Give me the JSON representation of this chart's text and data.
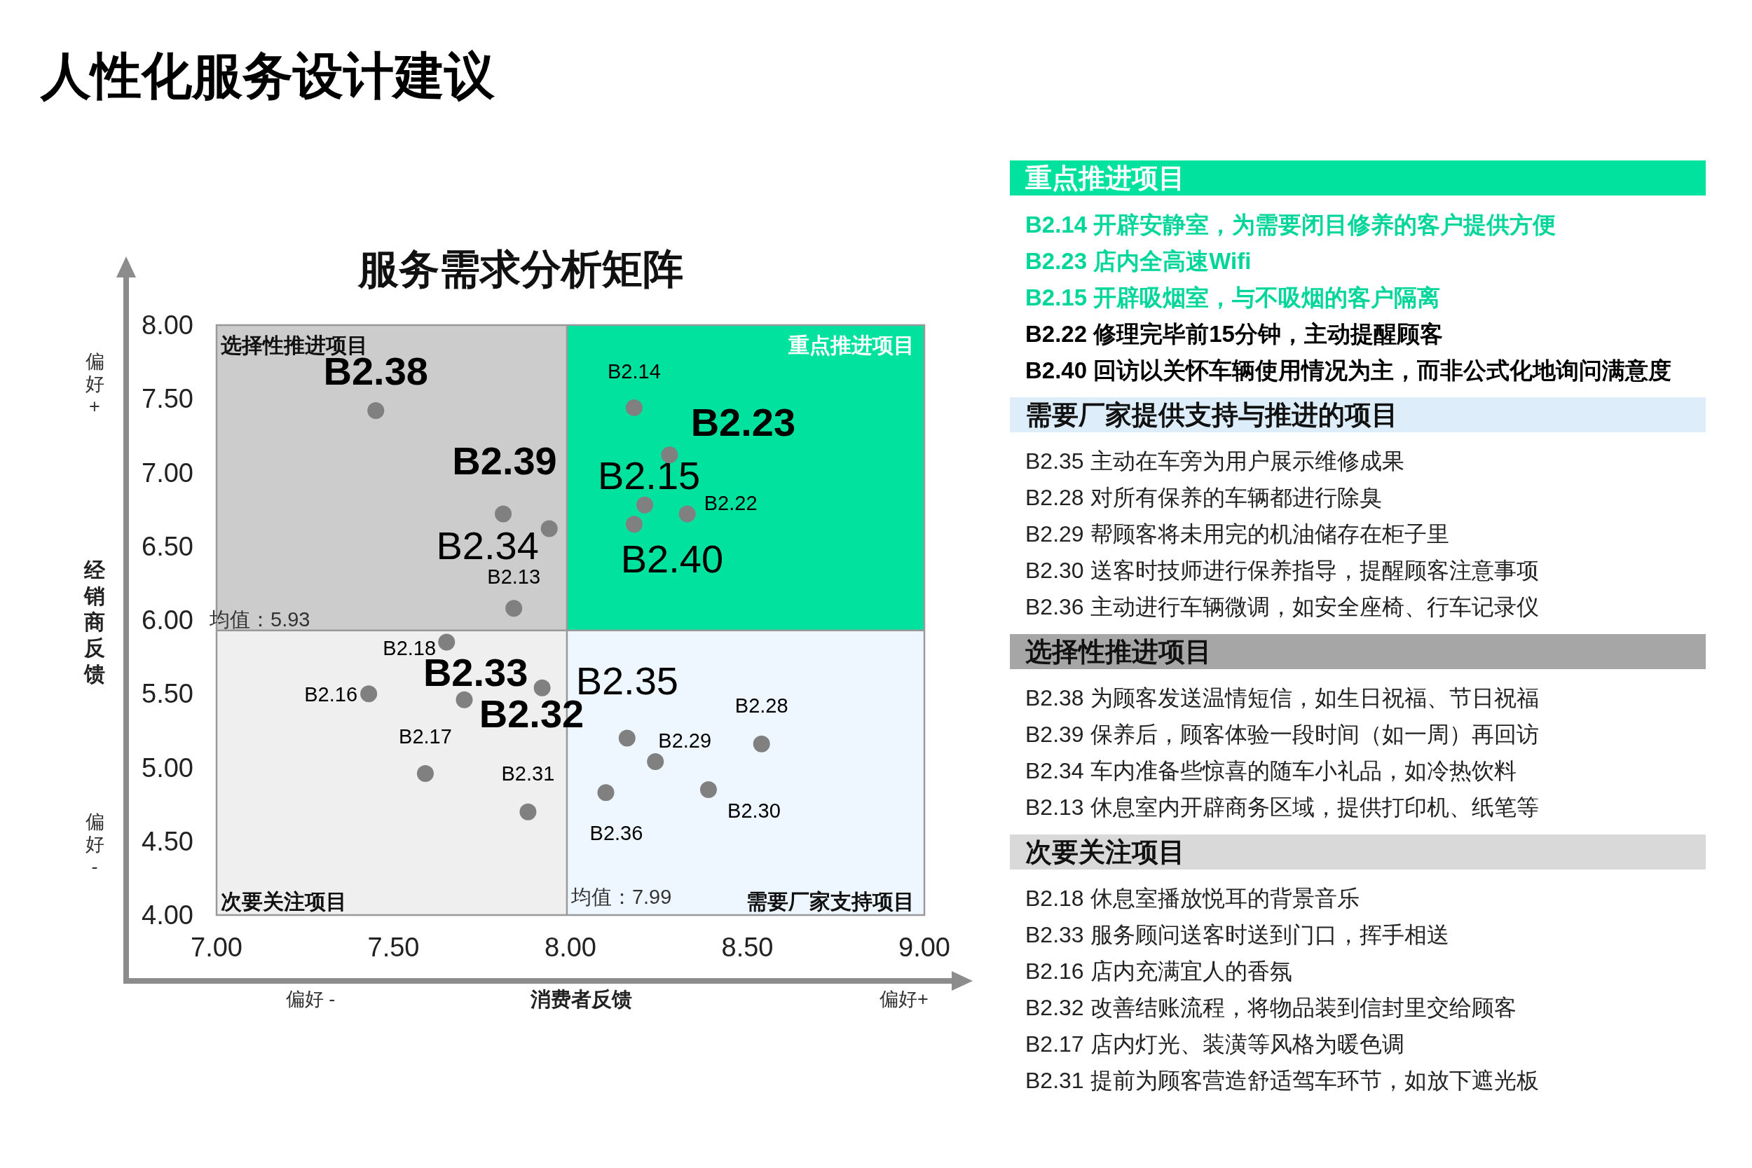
{
  "chart_data": [
    {
      "type": "scatter",
      "title": "人性化服务设计建议",
      "subtitle": "服务需求分析矩阵",
      "xlabel": "消费者反馈",
      "ylabel": "经销商反馈",
      "color": "#808080",
      "marker": "circle",
      "x": [
        8.18,
        8.28,
        8.21,
        8.33,
        8.18,
        8.16,
        8.54,
        8.24,
        8.39,
        8.1,
        7.45,
        7.81,
        7.94,
        7.84,
        7.65,
        7.92,
        7.43,
        7.7,
        7.59,
        7.88
      ],
      "values": [
        7.44,
        7.12,
        6.78,
        6.72,
        6.65,
        5.2,
        5.16,
        5.04,
        4.85,
        4.83,
        7.42,
        6.72,
        6.62,
        6.08,
        5.85,
        5.54,
        5.5,
        5.46,
        4.96,
        4.7
      ],
      "xlim": [
        7,
        9
      ],
      "ylim": [
        4,
        8
      ],
      "xticks": [
        {
          "value": 7,
          "label": "7.00"
        },
        {
          "value": 7.5,
          "label": "7.50"
        },
        {
          "value": 8,
          "label": "8.00"
        },
        {
          "value": 8.5,
          "label": "8.50"
        },
        {
          "value": 9,
          "label": "9.00"
        }
      ],
      "yticks": [
        {
          "value": 4,
          "label": "4.00"
        },
        {
          "value": 4.5,
          "label": "4.50"
        },
        {
          "value": 5,
          "label": "5.00"
        },
        {
          "value": 5.5,
          "label": "5.50"
        },
        {
          "value": 6,
          "label": "6.00"
        },
        {
          "value": 6.5,
          "label": "6.50"
        },
        {
          "value": 7,
          "label": "7.00"
        },
        {
          "value": 7.5,
          "label": "7.50"
        },
        {
          "value": 8,
          "label": "8.00"
        }
      ],
      "ref_lines": [
        {
          "axis": "x",
          "value": 7.99,
          "label": "均值：7.99",
          "color": "#999999"
        },
        {
          "axis": "y",
          "value": 5.93,
          "label": "均值：5.93",
          "color": "#999999"
        }
      ],
      "annotations": [
        "选择性推进项目",
        "重点推进项目",
        "次要关注项目",
        "需要厂家支持项目",
        "偏好 -",
        "偏好+",
        "偏好+",
        "偏好-",
        {
          "text": "B2.14",
          "x": 8.18,
          "y": 7.44
        },
        {
          "text": "B2.23",
          "x": 8.28,
          "y": 7.12
        },
        {
          "text": "B2.15",
          "x": 8.21,
          "y": 6.78
        },
        {
          "text": "B2.22",
          "x": 8.33,
          "y": 6.72
        },
        {
          "text": "B2.40",
          "x": 8.18,
          "y": 6.65
        },
        {
          "text": "B2.35",
          "x": 8.16,
          "y": 5.2
        },
        {
          "text": "B2.28",
          "x": 8.54,
          "y": 5.16
        },
        {
          "text": "B2.29",
          "x": 8.24,
          "y": 5.04
        },
        {
          "text": "B2.30",
          "x": 8.39,
          "y": 4.85
        },
        {
          "text": "B2.36",
          "x": 8.1,
          "y": 4.83
        },
        {
          "text": "B2.38",
          "x": 7.45,
          "y": 7.42
        },
        {
          "text": "B2.39",
          "x": 7.81,
          "y": 6.72
        },
        {
          "text": "B2.34",
          "x": 7.94,
          "y": 6.62
        },
        {
          "text": "B2.13",
          "x": 7.84,
          "y": 6.08
        },
        {
          "text": "B2.18",
          "x": 7.65,
          "y": 5.85
        },
        {
          "text": "B2.33",
          "x": 7.92,
          "y": 5.54
        },
        {
          "text": "B2.16",
          "x": 7.43,
          "y": 5.5
        },
        {
          "text": "B2.32",
          "x": 7.7,
          "y": 5.46
        },
        {
          "text": "B2.17",
          "x": 7.59,
          "y": 4.96
        },
        {
          "text": "B2.31",
          "x": 7.88,
          "y": 4.7
        }
      ]
    },
    {
      "type": "other",
      "title": "重点推进项目",
      "color": "#00e29e",
      "colors": [
        "#00d699",
        "#00d699",
        "#00d699",
        "#000000",
        "#000000"
      ],
      "annotations": [
        "B2.14 开辟安静室，为需要闭目修养的客户提供方便",
        "B2.23 店内全高速Wifi",
        "B2.15 开辟吸烟室，与不吸烟的客户隔离",
        "B2.22 修理完毕前15分钟，主动提醒顾客",
        "B2.40 回访以关怀车辆使用情况为主，而非公式化地询问满意度"
      ]
    },
    {
      "type": "other",
      "title": "需要厂家提供支持与推进的项目",
      "color": "#ddeefa",
      "annotations": [
        "B2.35 主动在车旁为用户展示维修成果",
        "B2.28 对所有保养的车辆都进行除臭",
        "B2.29 帮顾客将未用完的机油储存在柜子里",
        "B2.30 送客时技师进行保养指导，提醒顾客注意事项",
        "B2.36 主动进行车辆微调，如安全座椅、行车记录仪"
      ]
    },
    {
      "type": "other",
      "title": "选择性推进项目",
      "color": "#a6a6a6",
      "annotations": [
        "B2.38 为顾客发送温情短信，如生日祝福、节日祝福",
        "B2.39 保养后，顾客体验一段时间（如一周）再回访",
        "B2.34 车内准备些惊喜的随车小礼品，如冷热饮料",
        "B2.13 休息室内开辟商务区域，提供打印机、纸笔等"
      ]
    },
    {
      "type": "other",
      "title": "次要关注项目",
      "color": "#d9d9d9",
      "annotations": [
        "B2.18 休息室播放悦耳的背景音乐",
        "B2.33 服务顾问送客时送到门口，挥手相送",
        "B2.16 店内充满宜人的香氛",
        "B2.32 改善结账流程，将物品装到信封里交给顾客",
        "B2.17 店内灯光、装潢等风格为暖色调",
        "B2.31 提前为顾客营造舒适驾车环节，如放下遮光板"
      ]
    }
  ]
}
